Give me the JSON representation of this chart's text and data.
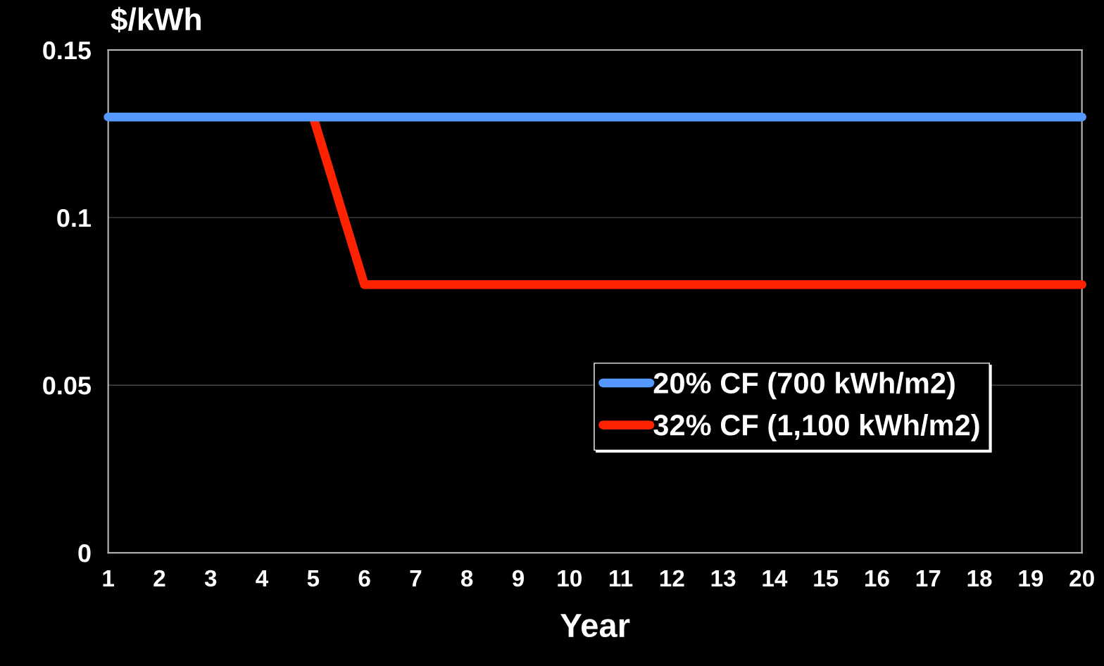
{
  "chart_data": {
    "type": "line",
    "categories": [
      "1",
      "2",
      "3",
      "4",
      "5",
      "6",
      "7",
      "8",
      "9",
      "10",
      "11",
      "12",
      "13",
      "14",
      "15",
      "16",
      "17",
      "18",
      "19",
      "20"
    ],
    "series": [
      {
        "name": "20% CF (700 kWh/m2)",
        "color": "#5599ff",
        "values": [
          0.13,
          0.13,
          0.13,
          0.13,
          0.13,
          0.13,
          0.13,
          0.13,
          0.13,
          0.13,
          0.13,
          0.13,
          0.13,
          0.13,
          0.13,
          0.13,
          0.13,
          0.13,
          0.13,
          0.13
        ]
      },
      {
        "name": "32% CF (1,100 kWh/m2)",
        "color": "#ff2200",
        "values": [
          null,
          null,
          null,
          null,
          0.13,
          0.08,
          0.08,
          0.08,
          0.08,
          0.08,
          0.08,
          0.08,
          0.08,
          0.08,
          0.08,
          0.08,
          0.08,
          0.08,
          0.08,
          0.08
        ]
      }
    ],
    "xlabel": "Year",
    "ylabel": "$/kWh",
    "ylim": [
      0,
      0.15
    ],
    "yticks": [
      0,
      0.05,
      {
        "value": 0.1,
        "label": "0.1"
      },
      0.15
    ],
    "grid": "y",
    "legend": "lower right",
    "marker": "none",
    "line_style": "solid"
  }
}
